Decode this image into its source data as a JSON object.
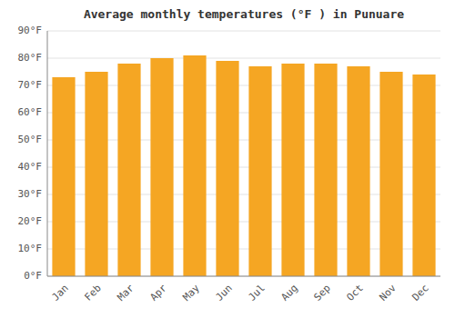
{
  "chart_data": {
    "type": "bar",
    "title": "Average monthly temperatures (°F ) in Punuare",
    "categories": [
      "Jan",
      "Feb",
      "Mar",
      "Apr",
      "May",
      "Jun",
      "Jul",
      "Aug",
      "Sep",
      "Oct",
      "Nov",
      "Dec"
    ],
    "values": [
      73,
      75,
      78,
      80,
      81,
      79,
      77,
      78,
      78,
      77,
      75,
      74
    ],
    "color": "#F5A623",
    "ylim": [
      0,
      90
    ],
    "yticks": [
      {
        "value": 0,
        "label": "0°F"
      },
      {
        "value": 10,
        "label": "10°F"
      },
      {
        "value": 20,
        "label": "20°F"
      },
      {
        "value": 30,
        "label": "30°F"
      },
      {
        "value": 40,
        "label": "40°F"
      },
      {
        "value": 50,
        "label": "50°F"
      },
      {
        "value": 60,
        "label": "60°F"
      },
      {
        "value": 70,
        "label": "70°F"
      },
      {
        "value": 80,
        "label": "80°F"
      },
      {
        "value": 90,
        "label": "90°F"
      }
    ],
    "grid": true
  }
}
